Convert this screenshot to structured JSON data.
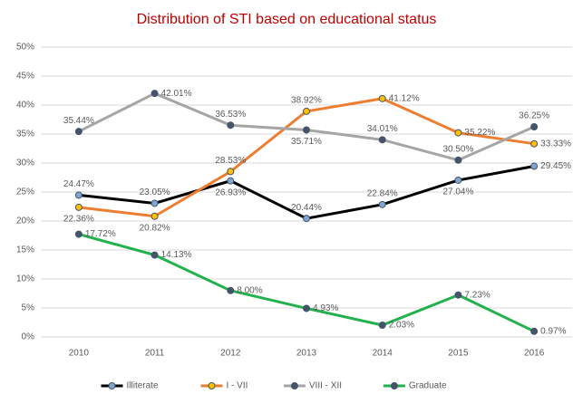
{
  "chart_data": {
    "type": "line",
    "title": "Distribution of STI based on educational status",
    "categories": [
      "2010",
      "2011",
      "2012",
      "2013",
      "2014",
      "2015",
      "2016"
    ],
    "series": [
      {
        "name": "Illiterate",
        "color": "#000000",
        "marker_color": "#7fa6d3",
        "values": [
          24.47,
          23.05,
          26.93,
          20.44,
          22.84,
          27.04,
          29.45
        ],
        "value_labels": [
          "24.47%",
          "23.05%",
          "26.93%",
          "20.44%",
          "22.84%",
          "27.04%",
          "29.45%"
        ]
      },
      {
        "name": "I - VII",
        "color": "#ed7d31",
        "marker_color": "#ffc000",
        "values": [
          22.36,
          20.82,
          28.53,
          38.92,
          41.12,
          35.22,
          33.33
        ],
        "value_labels": [
          "22.36%",
          "20.82%",
          "28.53%",
          "38.92%",
          "41.12%",
          "35.22%",
          "33.33%"
        ]
      },
      {
        "name": "VIII - XII",
        "color": "#a5a5a5",
        "marker_color": "#44546a",
        "values": [
          35.44,
          42.01,
          36.53,
          35.71,
          34.01,
          30.5,
          36.25
        ],
        "value_labels": [
          "35.44%",
          "42.01%",
          "36.53%",
          "35.71%",
          "34.01%",
          "30.50%",
          "36.25%"
        ]
      },
      {
        "name": "Graduate",
        "color": "#22b14c",
        "marker_color": "#44546a",
        "values": [
          17.72,
          14.13,
          8,
          4.93,
          2.03,
          7.23,
          0.97
        ],
        "value_labels": [
          "17.72%",
          "14.13%",
          "8.00%",
          "4.93%",
          "2.03%",
          "7.23%",
          "0.97%"
        ]
      }
    ],
    "ylim": [
      0,
      50
    ],
    "yticks": [
      {
        "value": 0,
        "label": "0%"
      },
      {
        "value": 5,
        "label": "5%"
      },
      {
        "value": 10,
        "label": "10%"
      },
      {
        "value": 15,
        "label": "15%"
      },
      {
        "value": 20,
        "label": "20%"
      },
      {
        "value": 25,
        "label": "25%"
      },
      {
        "value": 30,
        "label": "30%"
      },
      {
        "value": 35,
        "label": "35%"
      },
      {
        "value": 40,
        "label": "40%"
      },
      {
        "value": 45,
        "label": "45%"
      },
      {
        "value": 50,
        "label": "50%"
      }
    ],
    "grid": true,
    "legend": "bottom"
  }
}
